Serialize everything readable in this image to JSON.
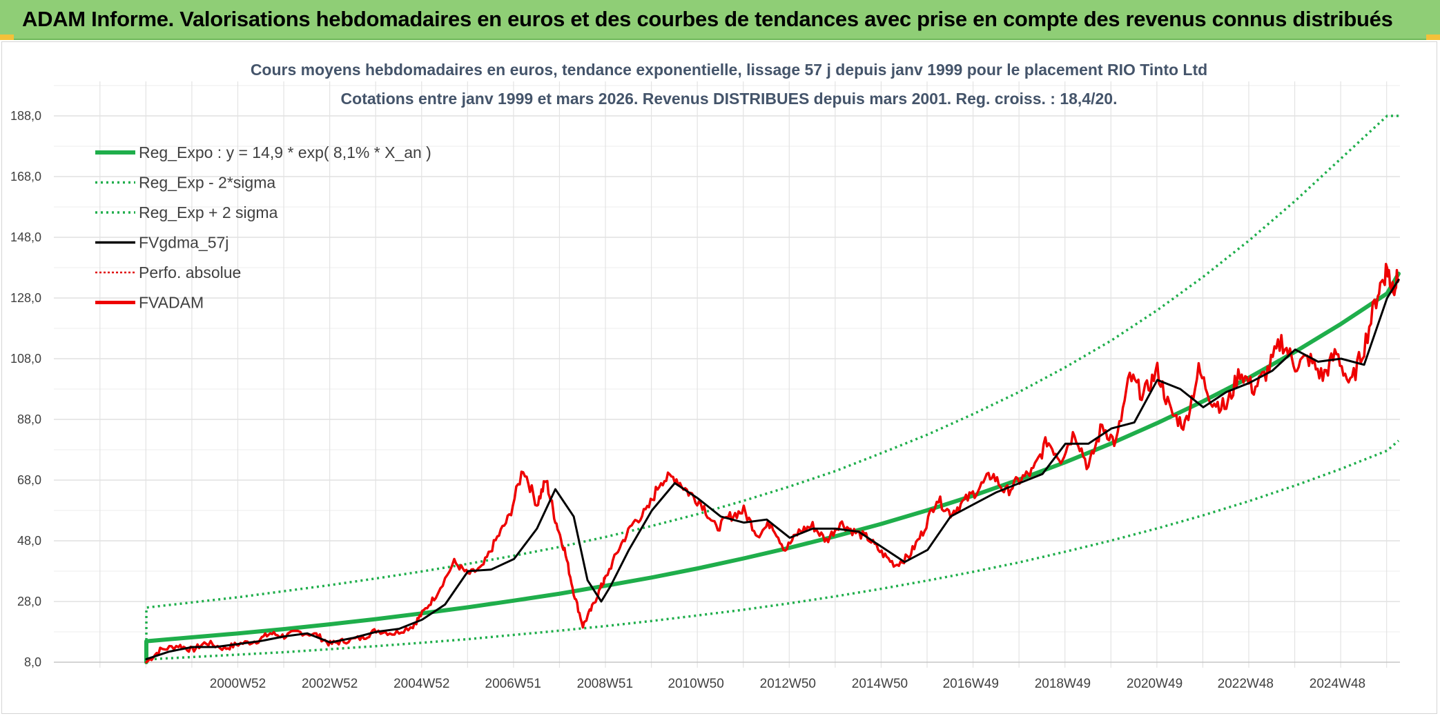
{
  "header": {
    "title": "ADAM Informe. Valorisations hebdomadaires en euros et des courbes de tendances avec prise en compte des revenus connus distribués"
  },
  "chart_data": {
    "type": "line",
    "title": "Cours moyens hebdomadaires en euros, tendance exponentielle, lissage 57 j depuis janv 1999 pour le placement RIO Tinto Ltd",
    "subtitle": "Cotations entre janv 1999 et mars 2026. Revenus DISTRIBUES depuis mars 2001. Reg. croiss. : 18,4/20.",
    "xlabel": "",
    "ylabel": "",
    "x_ticks": [
      "2000W52",
      "2002W52",
      "2004W52",
      "2006W51",
      "2008W51",
      "2010W50",
      "2012W50",
      "2014W50",
      "2016W49",
      "2018W49",
      "2020W49",
      "2022W48",
      "2024W48"
    ],
    "x_tick_years": [
      2000.99,
      2002.99,
      2004.99,
      2006.98,
      2008.98,
      2010.96,
      2012.96,
      2014.96,
      2016.94,
      2018.94,
      2020.94,
      2022.92,
      2024.92
    ],
    "y_ticks": [
      "8,0",
      "28,0",
      "48,0",
      "68,0",
      "88,0",
      "108,0",
      "128,0",
      "148,0",
      "168,0",
      "188,0"
    ],
    "xlim": [
      1999.0,
      2026.25
    ],
    "ylim": [
      8,
      188
    ],
    "grid": true,
    "legend_position": "top-left",
    "series": [
      {
        "name": "Reg_Expo : y = 14,9 * exp( 8,1% *  X_an )",
        "color": "#1fae4b",
        "style": "solid-thick",
        "x": [
          1999.0,
          2000.0,
          2001.0,
          2002.0,
          2003.0,
          2004.0,
          2005.0,
          2006.0,
          2007.0,
          2008.0,
          2009.0,
          2010.0,
          2011.0,
          2012.0,
          2013.0,
          2014.0,
          2015.0,
          2016.0,
          2017.0,
          2018.0,
          2019.0,
          2020.0,
          2021.0,
          2022.0,
          2023.0,
          2024.0,
          2025.0,
          2026.0,
          2026.25
        ],
        "values": [
          14.9,
          16.2,
          17.5,
          18.9,
          20.5,
          22.2,
          24.1,
          26.1,
          28.3,
          30.6,
          33.2,
          35.9,
          38.9,
          42.2,
          45.7,
          49.5,
          53.6,
          58.1,
          62.9,
          68.2,
          73.9,
          80.1,
          86.8,
          94.0,
          101.8,
          110.3,
          119.5,
          129.5,
          136.0
        ]
      },
      {
        "name": "Reg_Exp - 2*sigma",
        "color": "#1fae4b",
        "style": "dotted",
        "x": [
          1999.0,
          2000.0,
          2001.0,
          2002.0,
          2003.0,
          2004.0,
          2005.0,
          2006.0,
          2007.0,
          2008.0,
          2009.0,
          2010.0,
          2011.0,
          2012.0,
          2013.0,
          2014.0,
          2015.0,
          2016.0,
          2017.0,
          2018.0,
          2019.0,
          2020.0,
          2021.0,
          2022.0,
          2023.0,
          2024.0,
          2025.0,
          2026.0,
          2026.25
        ],
        "values": [
          8.9,
          9.7,
          10.5,
          11.3,
          12.3,
          13.3,
          14.4,
          15.6,
          17.0,
          18.4,
          19.9,
          21.6,
          23.4,
          25.3,
          27.4,
          29.7,
          32.2,
          34.9,
          37.8,
          40.9,
          44.4,
          48.1,
          52.1,
          56.4,
          61.1,
          66.2,
          71.7,
          77.7,
          81.0
        ]
      },
      {
        "name": "Reg_Exp + 2 sigma",
        "color": "#1fae4b",
        "style": "dotted",
        "x": [
          1999.0,
          2000.0,
          2001.0,
          2002.0,
          2003.0,
          2004.0,
          2005.0,
          2006.0,
          2007.0,
          2008.0,
          2009.0,
          2010.0,
          2011.0,
          2012.0,
          2013.0,
          2014.0,
          2015.0,
          2016.0,
          2017.0,
          2018.0,
          2019.0,
          2020.0,
          2021.0,
          2022.0,
          2023.0,
          2024.0,
          2025.0,
          2026.0,
          2026.25
        ],
        "values": [
          26.0,
          27.7,
          29.4,
          31.4,
          33.4,
          35.6,
          37.9,
          40.4,
          43.1,
          46.0,
          49.3,
          52.9,
          56.8,
          61.2,
          65.9,
          71.0,
          76.9,
          83.0,
          89.8,
          97.1,
          105.2,
          114.0,
          124.0,
          135.0,
          147.0,
          160.0,
          174.0,
          188.0,
          188.0
        ]
      },
      {
        "name": "FVgdma_57j",
        "color": "#000000",
        "style": "solid",
        "x": [
          1999.0,
          1999.5,
          2000.0,
          2000.5,
          2001.0,
          2001.5,
          2002.0,
          2002.5,
          2003.0,
          2003.5,
          2004.0,
          2004.5,
          2005.0,
          2005.5,
          2006.0,
          2006.5,
          2007.0,
          2007.5,
          2007.9,
          2008.3,
          2008.6,
          2008.9,
          2009.1,
          2009.5,
          2010.0,
          2010.5,
          2011.0,
          2011.5,
          2012.0,
          2012.5,
          2013.0,
          2013.5,
          2014.0,
          2014.5,
          2015.0,
          2015.5,
          2016.0,
          2016.5,
          2017.0,
          2017.5,
          2018.0,
          2018.5,
          2019.0,
          2019.5,
          2020.0,
          2020.5,
          2021.0,
          2021.5,
          2022.0,
          2022.5,
          2023.0,
          2023.5,
          2024.0,
          2024.5,
          2025.0,
          2025.5,
          2026.0,
          2026.25
        ],
        "values": [
          9.0,
          11.5,
          13.0,
          13.0,
          14.0,
          15.0,
          16.5,
          17.5,
          14.5,
          16.0,
          18.0,
          19.0,
          22.0,
          27.0,
          38.0,
          38.5,
          42.0,
          52.0,
          65.0,
          56.0,
          35.0,
          28.0,
          33.0,
          45.0,
          58.0,
          67.0,
          62.0,
          56.0,
          54.0,
          55.0,
          49.0,
          52.0,
          52.0,
          51.0,
          46.0,
          41.0,
          45.0,
          56.0,
          60.0,
          64.0,
          67.0,
          70.0,
          80.0,
          80.0,
          85.0,
          87.0,
          101.0,
          98.0,
          92.0,
          97.0,
          100.0,
          104.0,
          111.0,
          107.0,
          108.0,
          106.0,
          128.0,
          134.0
        ]
      },
      {
        "name": "Perfo. absolue",
        "color": "#e00000",
        "style": "dotted",
        "x": [
          1999.0,
          2026.25
        ],
        "values": [
          9.0,
          134.0
        ]
      },
      {
        "name": "FVADAM",
        "color": "#ee0000",
        "style": "solid-thick",
        "x": [
          1999.0,
          1999.3,
          1999.7,
          2000.0,
          2000.3,
          2000.7,
          2001.0,
          2001.4,
          2001.7,
          2002.0,
          2002.3,
          2002.7,
          2003.0,
          2003.3,
          2003.7,
          2004.0,
          2004.4,
          2004.8,
          2005.0,
          2005.3,
          2005.7,
          2006.0,
          2006.3,
          2006.6,
          2006.9,
          2007.2,
          2007.5,
          2007.7,
          2007.9,
          2008.1,
          2008.3,
          2008.5,
          2008.7,
          2008.9,
          2009.0,
          2009.3,
          2009.6,
          2009.9,
          2010.2,
          2010.5,
          2010.8,
          2011.1,
          2011.4,
          2011.7,
          2012.0,
          2012.3,
          2012.6,
          2012.9,
          2013.2,
          2013.5,
          2013.8,
          2014.1,
          2014.4,
          2014.7,
          2015.0,
          2015.3,
          2015.6,
          2015.9,
          2016.2,
          2016.5,
          2016.8,
          2017.1,
          2017.4,
          2017.7,
          2018.0,
          2018.3,
          2018.6,
          2018.9,
          2019.2,
          2019.5,
          2019.8,
          2020.1,
          2020.4,
          2020.7,
          2021.0,
          2021.3,
          2021.6,
          2021.9,
          2022.2,
          2022.5,
          2022.8,
          2023.1,
          2023.4,
          2023.7,
          2024.0,
          2024.3,
          2024.6,
          2024.9,
          2025.2,
          2025.5,
          2025.8,
          2026.0,
          2026.1,
          2026.25
        ],
        "values": [
          8.0,
          12.0,
          13.5,
          12.0,
          14.5,
          12.5,
          14.0,
          15.0,
          17.5,
          16.5,
          18.0,
          17.0,
          14.0,
          15.0,
          16.0,
          18.5,
          17.5,
          20.0,
          24.0,
          30.0,
          41.0,
          37.0,
          39.0,
          48.0,
          56.0,
          72.0,
          60.0,
          68.0,
          55.0,
          45.0,
          31.0,
          20.0,
          26.0,
          33.0,
          36.0,
          46.0,
          54.0,
          58.0,
          68.0,
          69.0,
          64.0,
          60.0,
          52.0,
          56.0,
          58.0,
          50.0,
          54.0,
          45.0,
          51.0,
          53.0,
          48.0,
          54.0,
          51.0,
          49.0,
          44.0,
          40.0,
          43.0,
          51.0,
          62.0,
          57.0,
          61.0,
          65.0,
          70.0,
          64.0,
          68.0,
          71.0,
          81.0,
          75.0,
          84.0,
          72.0,
          86.0,
          80.0,
          102.0,
          96.0,
          104.0,
          90.0,
          86.0,
          104.0,
          94.0,
          92.0,
          104.0,
          98.0,
          104.0,
          114.0,
          106.0,
          108.0,
          102.0,
          110.0,
          99.0,
          112.0,
          130.0,
          138.0,
          132.0,
          134.0
        ]
      }
    ]
  },
  "colors": {
    "banner_bg": "#8fce76",
    "reg_expo": "#1fae4b",
    "fvadam": "#ee0000",
    "fvgdma": "#000000",
    "title_text": "#44546a"
  }
}
